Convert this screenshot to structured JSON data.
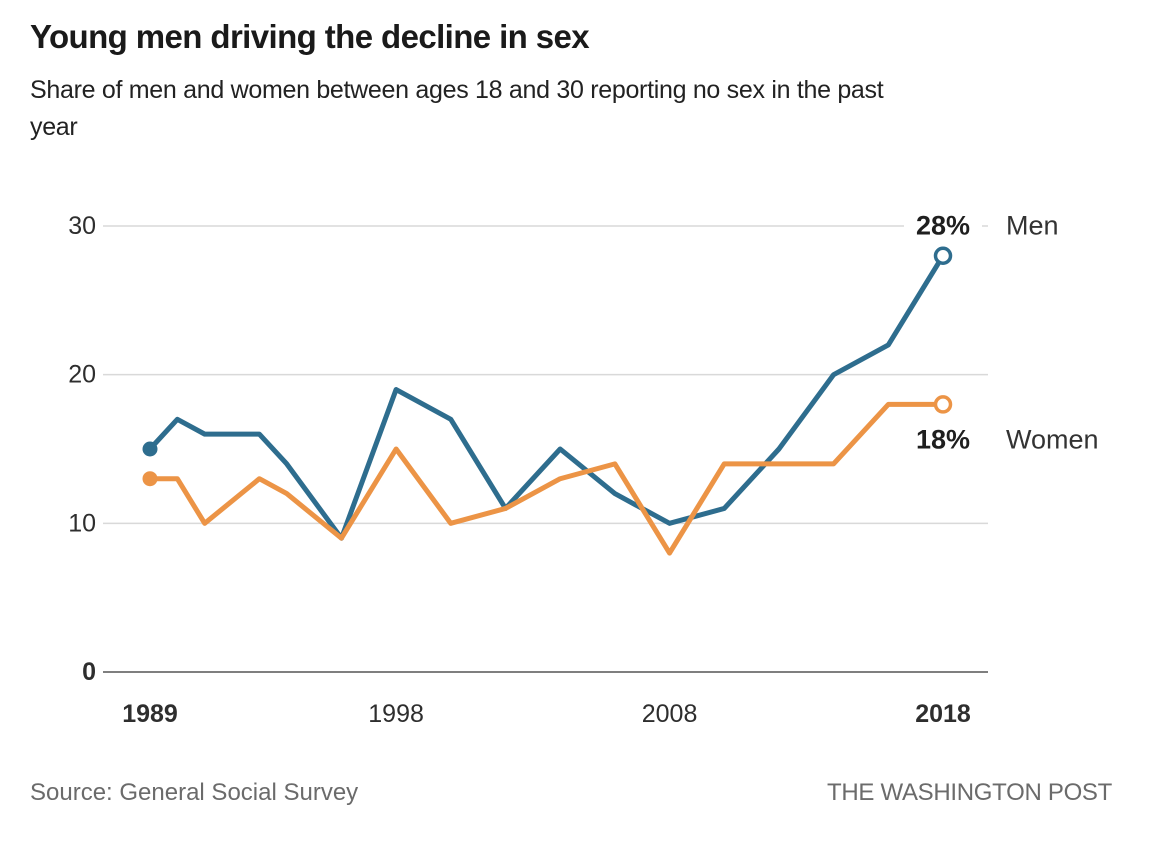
{
  "header": {
    "title": "Young men driving the decline in sex",
    "subtitle_lines": [
      "Share of men and women between ages 18 and 30 reporting no sex in the past",
      "year"
    ]
  },
  "chart_data": {
    "type": "line",
    "x_label": "",
    "y_label": "",
    "x": [
      1989,
      1990,
      1991,
      1993,
      1994,
      1996,
      1998,
      2000,
      2002,
      2004,
      2006,
      2008,
      2010,
      2012,
      2014,
      2016,
      2018
    ],
    "series": [
      {
        "name": "Men",
        "color": "#2e6d8e",
        "values": [
          15,
          17,
          16,
          16,
          14,
          9,
          19,
          17,
          11,
          15,
          12,
          10,
          11,
          15,
          20,
          22,
          28
        ],
        "end_value_label": "28%"
      },
      {
        "name": "Women",
        "color": "#ec9446",
        "values": [
          13,
          13,
          10,
          13,
          12,
          9,
          15,
          10,
          11,
          13,
          14,
          8,
          14,
          14,
          14,
          18,
          18
        ],
        "end_value_label": "18%"
      }
    ],
    "xlim": [
      1989,
      2018
    ],
    "ylim": [
      0,
      30
    ],
    "y_ticks": [
      0,
      10,
      20,
      30
    ],
    "x_ticks": [
      1989,
      1998,
      2008,
      2018
    ],
    "bold_x_ticks": [
      1989,
      2018
    ],
    "bold_y_ticks": [
      0
    ],
    "grid": "horizontal",
    "legend_position": "end-of-line",
    "start_markers": "filled-dot",
    "end_markers": "open-ring",
    "colors": {
      "gridline": "#d9d9d9",
      "zero_axis": "#7f7f7f",
      "tick_label": "#2e2e2e",
      "value_label": "#1f1f1f",
      "series_label": "#333333"
    }
  },
  "footer": {
    "source": "Source: General Social Survey",
    "credit": "THE WASHINGTON POST"
  }
}
